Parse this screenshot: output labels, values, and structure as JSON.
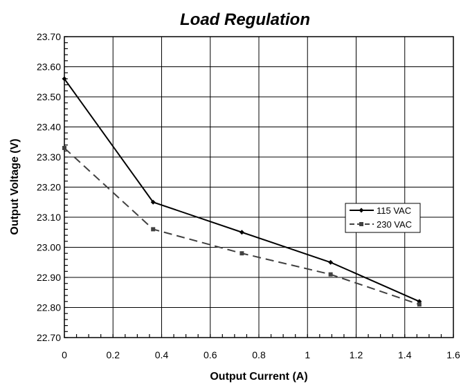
{
  "chart_data": {
    "type": "line",
    "title": "Load Regulation",
    "xlabel": "Output Current (A)",
    "ylabel": "Output Voltage (V)",
    "xlim": [
      0,
      1.6
    ],
    "ylim": [
      22.7,
      23.7
    ],
    "x_ticks": [
      "0",
      "0.2",
      "0.4",
      "0.6",
      "0.8",
      "1",
      "1.2",
      "1.4",
      "1.6"
    ],
    "y_ticks": [
      "23.70",
      "23.60",
      "23.50",
      "23.40",
      "23.30",
      "23.20",
      "23.10",
      "23.00",
      "22.90",
      "22.80",
      "22.70"
    ],
    "grid": true,
    "legend_position": "right",
    "series": [
      {
        "name": "115 VAC",
        "style": "solid",
        "marker": "diamond",
        "color": "#000000",
        "x": [
          0,
          0.365,
          0.73,
          1.095,
          1.46
        ],
        "y": [
          23.56,
          23.15,
          23.05,
          22.95,
          22.82
        ]
      },
      {
        "name": "230 VAC",
        "style": "dashed",
        "marker": "square",
        "color": "#404040",
        "x": [
          0,
          0.365,
          0.73,
          1.095,
          1.46
        ],
        "y": [
          23.33,
          23.06,
          22.98,
          22.91,
          22.81
        ]
      }
    ]
  }
}
